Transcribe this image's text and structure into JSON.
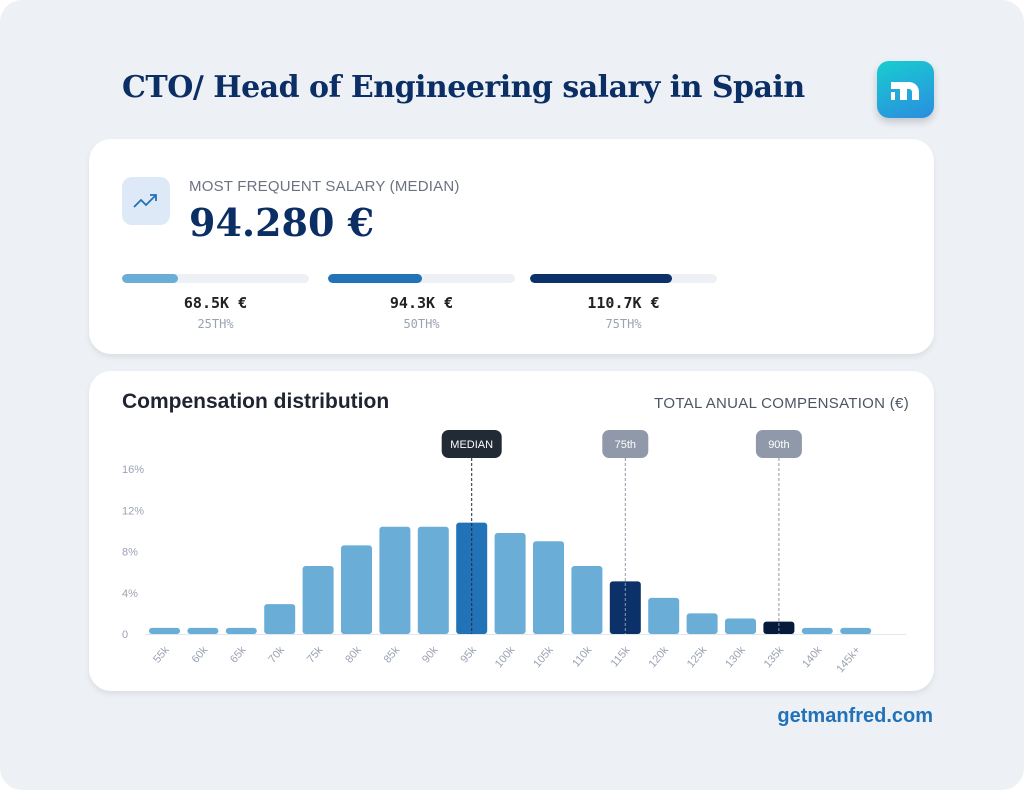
{
  "title": "CTO/ Head of Engineering salary in Spain",
  "logo_text": "m",
  "summary": {
    "label": "MOST FREQUENT SALARY (MEDIAN)",
    "value": "94.280 €",
    "percentiles": [
      {
        "value": "68.5K €",
        "label": "25TH%",
        "fill": 0.3,
        "color": "#6aaed8"
      },
      {
        "value": "94.3K €",
        "label": "50TH%",
        "fill": 0.5,
        "color": "#2272b8"
      },
      {
        "value": "110.7K €",
        "label": "75TH%",
        "fill": 0.76,
        "color": "#0b3168"
      }
    ]
  },
  "chart_data": {
    "type": "bar",
    "title": "Compensation distribution",
    "xlabel": "TOTAL ANUAL COMPENSATION (€)",
    "ylabel": "",
    "ylim": [
      0,
      16
    ],
    "yticks": [
      {
        "v": 0,
        "label": "0"
      },
      {
        "v": 4,
        "label": "4%"
      },
      {
        "v": 8,
        "label": "8%"
      },
      {
        "v": 12,
        "label": "12%"
      },
      {
        "v": 16,
        "label": "16%"
      }
    ],
    "categories": [
      "55k",
      "60k",
      "65k",
      "70k",
      "75k",
      "80k",
      "85k",
      "90k",
      "95k",
      "100k",
      "105k",
      "110k",
      "115k",
      "120k",
      "125k",
      "130k",
      "135k",
      "140k",
      "145k+"
    ],
    "values": [
      0.6,
      0.6,
      0.6,
      2.9,
      6.6,
      8.6,
      10.4,
      10.4,
      10.8,
      9.8,
      9.0,
      6.6,
      5.1,
      3.5,
      2.0,
      1.5,
      1.2,
      0.6,
      0.6
    ],
    "bar_color": "#6aaed8",
    "highlights": [
      {
        "index": 8,
        "color": "#2272b8"
      },
      {
        "index": 12,
        "color": "#0b3168"
      },
      {
        "index": 16,
        "color": "#061a3a"
      }
    ],
    "markers": [
      {
        "label": "MEDIAN",
        "index": 8,
        "color": "#222a36"
      },
      {
        "label": "75th",
        "index": 12,
        "color": "#8f99aa"
      },
      {
        "label": "90th",
        "index": 16,
        "color": "#8f99aa"
      }
    ]
  },
  "footer": "getmanfred.com"
}
